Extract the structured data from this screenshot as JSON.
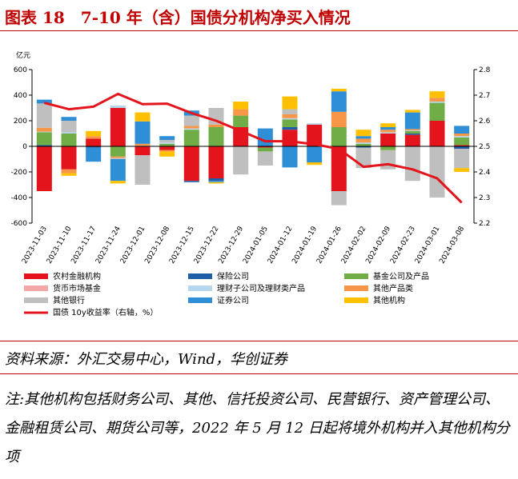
{
  "figure": {
    "title": "图表 18　7-10 年（含）国债分机构净买入情况",
    "source": "资料来源：外汇交易中心，Wind，华创证券",
    "note": "注:其他机构包括财务公司、其他、信托投资公司、民营银行、资产管理公司、金融租赁公司、期货公司等，2022 年 5 月 12 日起将境外机构并入其他机构分项"
  },
  "chart_data": {
    "type": "bar",
    "stacked": true,
    "ylabel": "亿元",
    "ylim": [
      -600,
      600
    ],
    "yticks": [
      -600,
      -400,
      -200,
      0,
      200,
      400,
      600
    ],
    "y2lim": [
      2.2,
      2.8
    ],
    "y2ticks": [
      "2.2",
      "2.3",
      "2.4",
      "2.5",
      "2.6",
      "2.7",
      "2.8"
    ],
    "legend_position": "bottom",
    "grid": false,
    "categories": [
      "2023-11-03",
      "2023-11-10",
      "2023-11-17",
      "2023-11-24",
      "2023-12-01",
      "2023-12-08",
      "2023-12-15",
      "2023-12-22",
      "2023-12-29",
      "2024-01-05",
      "2024-01-12",
      "2024-01-19",
      "2024-01-26",
      "2024-02-02",
      "2024-02-09",
      "2024-02-23",
      "2024-03-01",
      "2024-03-08"
    ],
    "series": [
      {
        "name": "农村金融机构",
        "color": "#e3141b",
        "values": [
          -350,
          -180,
          60,
          300,
          -70,
          -30,
          -270,
          -250,
          150,
          -10,
          130,
          170,
          -350,
          0,
          100,
          90,
          200,
          10
        ]
      },
      {
        "name": "保险公司",
        "color": "#1f5fa8",
        "values": [
          10,
          0,
          -10,
          0,
          0,
          0,
          -10,
          -20,
          0,
          0,
          20,
          0,
          0,
          -10,
          0,
          10,
          0,
          -20
        ]
      },
      {
        "name": "基金公司及产品",
        "color": "#70ad47",
        "values": [
          100,
          100,
          0,
          -80,
          0,
          20,
          130,
          150,
          90,
          -30,
          60,
          0,
          150,
          20,
          -30,
          20,
          140,
          60
        ]
      },
      {
        "name": "货币市场基金",
        "color": "#f4a7a7",
        "values": [
          0,
          0,
          0,
          0,
          0,
          0,
          0,
          0,
          0,
          0,
          0,
          0,
          0,
          0,
          0,
          0,
          0,
          0
        ]
      },
      {
        "name": "理财子公司及理财类产品",
        "color": "#b4d7ee",
        "values": [
          5,
          10,
          0,
          20,
          5,
          10,
          10,
          0,
          0,
          0,
          10,
          10,
          0,
          10,
          10,
          5,
          10,
          10
        ]
      },
      {
        "name": "其他产品类",
        "color": "#f79646",
        "values": [
          30,
          -30,
          20,
          -10,
          15,
          -10,
          20,
          20,
          50,
          0,
          30,
          0,
          120,
          30,
          20,
          10,
          30,
          20
        ]
      },
      {
        "name": "其他银行",
        "color": "#bfbfbf",
        "values": [
          190,
          90,
          0,
          -10,
          -230,
          20,
          80,
          130,
          -220,
          -110,
          40,
          0,
          -110,
          -160,
          -150,
          -270,
          -400,
          -150
        ]
      },
      {
        "name": "证券公司",
        "color": "#2e8fd6",
        "values": [
          30,
          30,
          -110,
          -170,
          175,
          30,
          40,
          -10,
          0,
          140,
          -165,
          -125,
          160,
          20,
          20,
          130,
          0,
          60
        ]
      },
      {
        "name": "其他机构",
        "color": "#ffc000",
        "values": [
          0,
          -20,
          40,
          -20,
          70,
          -40,
          0,
          -10,
          60,
          0,
          100,
          -20,
          20,
          50,
          30,
          20,
          50,
          -30
        ]
      }
    ],
    "line_series": {
      "name": "国债 10y收益率（右轴，%）",
      "color": "#e3141b",
      "axis": "right",
      "values": [
        2.67,
        2.645,
        2.655,
        2.705,
        2.665,
        2.667,
        2.63,
        2.6,
        2.56,
        2.52,
        2.52,
        2.508,
        2.49,
        2.42,
        2.43,
        2.41,
        2.375,
        2.28
      ]
    }
  }
}
